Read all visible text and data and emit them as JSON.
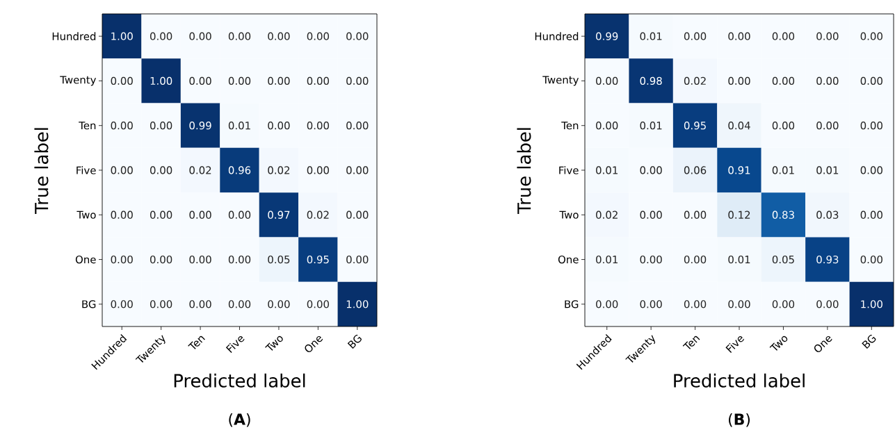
{
  "chart_data": [
    {
      "type": "heatmap",
      "xlabel": "Predicted label",
      "ylabel": "True label",
      "categories": [
        "Hundred",
        "Twenty",
        "Ten",
        "Five",
        "Two",
        "One",
        "BG"
      ],
      "y_categories": [
        "Hundred",
        "Twenty",
        "Ten",
        "Five",
        "Two",
        "One",
        "BG"
      ],
      "cells": [
        [
          1.0,
          0.0,
          0.0,
          0.0,
          0.0,
          0.0,
          0.0
        ],
        [
          0.0,
          1.0,
          0.0,
          0.0,
          0.0,
          0.0,
          0.0
        ],
        [
          0.0,
          0.0,
          0.99,
          0.01,
          0.0,
          0.0,
          0.0
        ],
        [
          0.0,
          0.0,
          0.02,
          0.96,
          0.02,
          0.0,
          0.0
        ],
        [
          0.0,
          0.0,
          0.0,
          0.0,
          0.97,
          0.02,
          0.0
        ],
        [
          0.0,
          0.0,
          0.0,
          0.0,
          0.05,
          0.95,
          0.0
        ],
        [
          0.0,
          0.0,
          0.0,
          0.0,
          0.0,
          0.0,
          1.0
        ]
      ],
      "cell_labels": [
        [
          "1.00",
          "0.00",
          "0.00",
          "0.00",
          "0.00",
          "0.00",
          "0.00"
        ],
        [
          "0.00",
          "1.00",
          "0.00",
          "0.00",
          "0.00",
          "0.00",
          "0.00"
        ],
        [
          "0.00",
          "0.00",
          "0.99",
          "0.01",
          "0.00",
          "0.00",
          "0.00"
        ],
        [
          "0.00",
          "0.00",
          "0.02",
          "0.96",
          "0.02",
          "0.00",
          "0.00"
        ],
        [
          "0.00",
          "0.00",
          "0.00",
          "0.00",
          "0.97",
          "0.02",
          "0.00"
        ],
        [
          "0.00",
          "0.00",
          "0.00",
          "0.00",
          "0.05",
          "0.95",
          "0.00"
        ],
        [
          "0.00",
          "0.00",
          "0.00",
          "0.00",
          "0.00",
          "0.00",
          "1.00"
        ]
      ],
      "annotations": [
        "(**A**)"
      ]
    },
    {
      "type": "heatmap",
      "xlabel": "Predicted label",
      "ylabel": "True label",
      "categories": [
        "Hundred",
        "Twenty",
        "Ten",
        "Five",
        "Two",
        "One",
        "BG"
      ],
      "y_categories": [
        "Hundred",
        "Twenty",
        "Ten",
        "Five",
        "Two",
        "One",
        "BG"
      ],
      "cells": [
        [
          0.99,
          0.01,
          0.0,
          0.0,
          0.0,
          0.0,
          0.0
        ],
        [
          0.0,
          0.98,
          0.02,
          0.0,
          0.0,
          0.0,
          0.0
        ],
        [
          0.0,
          0.01,
          0.95,
          0.04,
          0.0,
          0.0,
          0.0
        ],
        [
          0.01,
          0.0,
          0.06,
          0.91,
          0.01,
          0.01,
          0.0
        ],
        [
          0.02,
          0.0,
          0.0,
          0.12,
          0.83,
          0.03,
          0.0
        ],
        [
          0.01,
          0.0,
          0.0,
          0.01,
          0.05,
          0.93,
          0.0
        ],
        [
          0.0,
          0.0,
          0.0,
          0.0,
          0.0,
          0.0,
          1.0
        ]
      ],
      "cell_labels": [
        [
          "0.99",
          "0.01",
          "0.00",
          "0.00",
          "0.00",
          "0.00",
          "0.00"
        ],
        [
          "0.00",
          "0.98",
          "0.02",
          "0.00",
          "0.00",
          "0.00",
          "0.00"
        ],
        [
          "0.00",
          "0.01",
          "0.95",
          "0.04",
          "0.00",
          "0.00",
          "0.00"
        ],
        [
          "0.01",
          "0.00",
          "0.06",
          "0.91",
          "0.01",
          "0.01",
          "0.00"
        ],
        [
          "0.02",
          "0.00",
          "0.00",
          "0.12",
          "0.83",
          "0.03",
          "0.00"
        ],
        [
          "0.01",
          "0.00",
          "0.00",
          "0.01",
          "0.05",
          "0.93",
          "0.00"
        ],
        [
          "0.00",
          "0.00",
          "0.00",
          "0.00",
          "0.00",
          "0.00",
          "1.00"
        ]
      ],
      "annotations": [
        "(**B**)"
      ]
    }
  ]
}
